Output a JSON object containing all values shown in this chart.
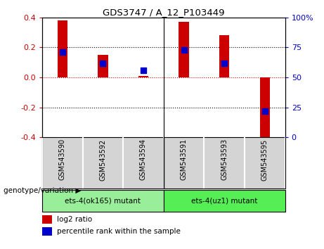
{
  "title": "GDS3747 / A_12_P103449",
  "categories": [
    "GSM543590",
    "GSM543592",
    "GSM543594",
    "GSM543591",
    "GSM543593",
    "GSM543595"
  ],
  "log2_ratio": [
    0.38,
    0.15,
    0.01,
    0.37,
    0.28,
    -0.42
  ],
  "percentile_rank_pct": [
    71,
    62,
    56,
    73,
    62,
    22
  ],
  "bar_color": "#cc0000",
  "dot_color": "#0000cc",
  "ylim": [
    -0.4,
    0.4
  ],
  "right_ylim": [
    0,
    100
  ],
  "right_yticks": [
    0,
    25,
    50,
    75,
    100
  ],
  "right_yticklabels": [
    "0",
    "25",
    "50",
    "75",
    "100%"
  ],
  "left_yticks": [
    -0.4,
    -0.2,
    0.0,
    0.2,
    0.4
  ],
  "hline_y": 0.0,
  "hline_color": "#cc0000",
  "dotted_lines": [
    -0.2,
    0.2
  ],
  "group1_label": "ets-4(ok165) mutant",
  "group2_label": "ets-4(uz1) mutant",
  "group_color1": "#99ee99",
  "group_color2": "#55ee55",
  "group_label_prefix": "genotype/variation",
  "legend_red_label": "log2 ratio",
  "legend_blue_label": "percentile rank within the sample",
  "plot_bg": "#ffffff",
  "xtick_bg": "#d4d4d4"
}
